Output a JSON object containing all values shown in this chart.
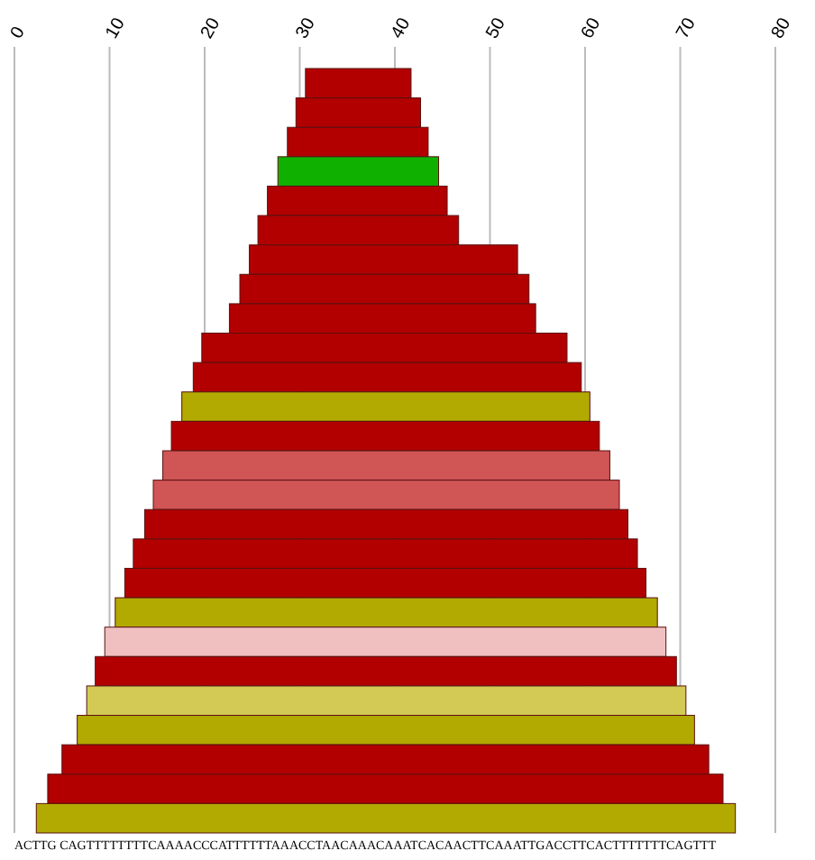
{
  "chart_data": {
    "type": "bar",
    "orientation": "horizontal",
    "categories": [
      null,
      null,
      null,
      null,
      null,
      null,
      null,
      null,
      null,
      null,
      null,
      null,
      null,
      null,
      null,
      null,
      null,
      null,
      null,
      null,
      null,
      null,
      null,
      null,
      null,
      null
    ],
    "base": [
      30.6,
      29.6,
      28.7,
      27.7,
      26.6,
      25.6,
      24.7,
      23.7,
      22.6,
      19.7,
      18.8,
      17.6,
      16.5,
      15.6,
      14.6,
      13.7,
      12.5,
      11.6,
      10.6,
      9.5,
      8.5,
      7.6,
      6.6,
      5,
      3.5,
      2.3
    ],
    "values": [
      11.1,
      13.1,
      14.8,
      16.9,
      18.9,
      21.1,
      28.2,
      30.4,
      32.2,
      38.4,
      40.8,
      42.9,
      45,
      47,
      49,
      50.8,
      53,
      54.8,
      57,
      59,
      61.1,
      63,
      64.9,
      68,
      71,
      73.5
    ],
    "colors": [
      "#b20000",
      "#b20000",
      "#b20000",
      "#10b000",
      "#b20000",
      "#b20000",
      "#b20000",
      "#b20000",
      "#b20000",
      "#b20000",
      "#b20000",
      "#b2aa00",
      "#b20000",
      "#d05555",
      "#d05555",
      "#b20000",
      "#b20000",
      "#b20000",
      "#b2aa00",
      "#f0c0c0",
      "#b20000",
      "#d2ca55",
      "#b2aa00",
      "#b20000",
      "#b20000",
      "#b2aa00"
    ],
    "xlim": [
      0,
      80
    ],
    "xticks": [
      0,
      10,
      20,
      30,
      40,
      50,
      60,
      70,
      80
    ],
    "grid": "x",
    "tick_labels": "x",
    "annotations": [
      "ACTTG CAGTTTTTTTTCAAAACCCATTTTTTAAACCTAACAAACAAATCACAACTTCAAATTGACCTTCACTTTTTTTCAGTTT"
    ]
  }
}
